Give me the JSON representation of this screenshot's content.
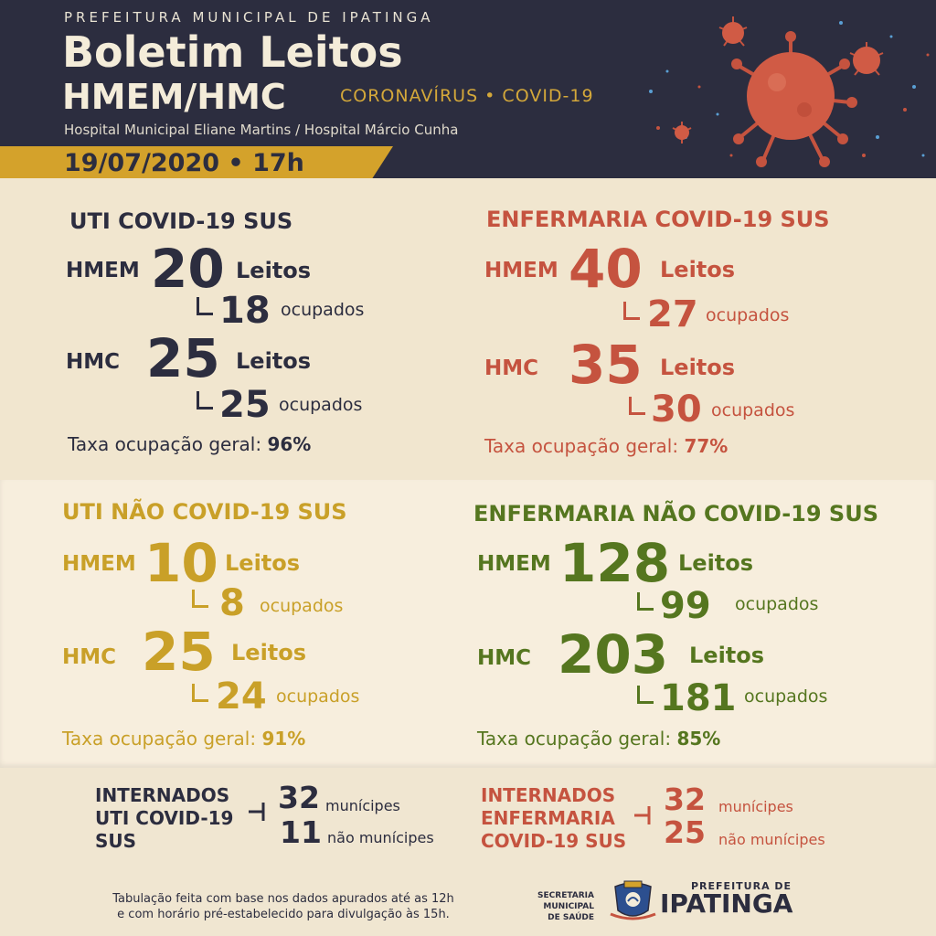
{
  "header": {
    "kicker": "PREFEITURA MUNICIPAL DE IPATINGA",
    "title_line1": "Boletim Leitos",
    "title_line2": "HMEM/HMC",
    "tag": "CORONAVÍRUS • COVID-19",
    "subtitle": "Hospital Municipal Eliane Martins / Hospital Márcio Cunha",
    "date": "19/07/2020 • 17h"
  },
  "uti_covid": {
    "heading": "UTI COVID-19 SUS",
    "hmem_label": "HMEM",
    "hmem_leitos": "20",
    "hmem_leitos_label": "Leitos",
    "hmem_ocupados": "18",
    "hmem_ocupados_label": "ocupados",
    "hmc_label": "HMC",
    "hmc_leitos": "25",
    "hmc_leitos_label": "Leitos",
    "hmc_ocupados": "25",
    "hmc_ocupados_label": "ocupados",
    "taxa_label": "Taxa ocupação geral:",
    "taxa_value": "96%"
  },
  "enf_covid": {
    "heading": "ENFERMARIA  COVID-19 SUS",
    "hmem_label": "HMEM",
    "hmem_leitos": "40",
    "hmem_leitos_label": "Leitos",
    "hmem_ocupados": "27",
    "hmem_ocupados_label": "ocupados",
    "hmc_label": "HMC",
    "hmc_leitos": "35",
    "hmc_leitos_label": "Leitos",
    "hmc_ocupados": "30",
    "hmc_ocupados_label": "ocupados",
    "taxa_label": "Taxa ocupação geral:",
    "taxa_value": "77%"
  },
  "uti_nao_covid": {
    "heading": "UTI NÃO COVID-19 SUS",
    "hmem_label": "HMEM",
    "hmem_leitos": "10",
    "hmem_leitos_label": "Leitos",
    "hmem_ocupados": "8",
    "hmem_ocupados_label": "ocupados",
    "hmc_label": "HMC",
    "hmc_leitos": "25",
    "hmc_leitos_label": "Leitos",
    "hmc_ocupados": "24",
    "hmc_ocupados_label": "ocupados",
    "taxa_label": "Taxa ocupação geral:",
    "taxa_value": "91%"
  },
  "enf_nao_covid": {
    "heading": "ENFERMARIA NÃO COVID-19 SUS",
    "hmem_label": "HMEM",
    "hmem_leitos": "128",
    "hmem_leitos_label": "Leitos",
    "hmem_ocupados": "99",
    "hmem_ocupados_label": "ocupados",
    "hmc_label": "HMC",
    "hmc_leitos": "203",
    "hmc_leitos_label": "Leitos",
    "hmc_ocupados": "181",
    "hmc_ocupados_label": "ocupados",
    "taxa_label": "Taxa ocupação geral:",
    "taxa_value": "85%"
  },
  "internados_uti": {
    "label_line1": "INTERNADOS",
    "label_line2": "UTI COVID-19",
    "label_line3": "SUS",
    "municipes": "32",
    "municipes_label": "munícipes",
    "nao_municipes": "11",
    "nao_municipes_label": "não munícipes"
  },
  "internados_enf": {
    "label_line1": "INTERNADOS",
    "label_line2": "ENFERMARIA",
    "label_line3": "COVID-19 SUS",
    "municipes": "32",
    "municipes_label": "munícipes",
    "nao_municipes": "25",
    "nao_municipes_label": "não munícipes"
  },
  "footer": {
    "note_line1": "Tabulação feita com base nos dados apurados até as 12h",
    "note_line2": "e com horário pré-estabelecido para divulgação às 15h.",
    "secretaria_line1": "SECRETARIA MUNICIPAL",
    "secretaria_line2": "DE SAÚDE",
    "prefeitura_small": "PREFEITURA DE",
    "prefeitura_big": "IPATINGA"
  },
  "colors": {
    "navy": "#2c2d3f",
    "red": "#c5533f",
    "gold": "#c9a028",
    "green": "#55761f",
    "accent_bar": "#d4a22b"
  },
  "icons": [
    "virus-illustration-icon",
    "crest-logo-icon"
  ]
}
